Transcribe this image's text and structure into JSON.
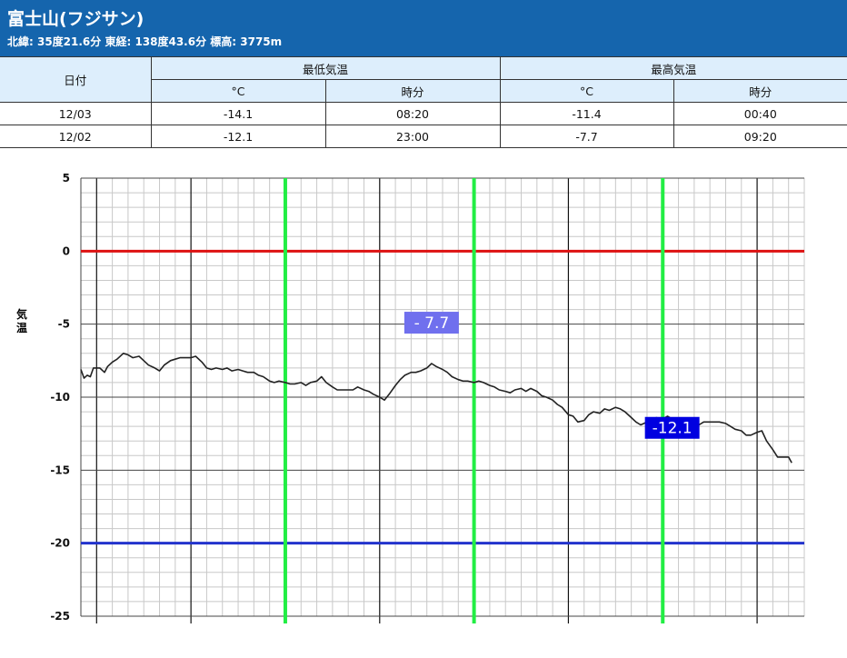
{
  "station": {
    "title": "富士山(フジサン)",
    "info": "北緯: 35度21.6分 東経: 138度43.6分 標高: 3775m"
  },
  "table": {
    "date_header": "日付",
    "min_group": "最低気温",
    "max_group": "最高気温",
    "unit_c": "°C",
    "unit_time": "時分",
    "rows": [
      {
        "date": "12/03",
        "min_c": "-14.1",
        "min_time": "08:20",
        "max_c": "-11.4",
        "max_time": "00:40"
      },
      {
        "date": "12/02",
        "min_c": "-12.1",
        "min_time": "23:00",
        "max_c": "-7.7",
        "max_time": "09:20"
      }
    ]
  },
  "chart_data": {
    "type": "line",
    "ylabel": "気温",
    "ylim": [
      -25,
      5
    ],
    "yticks": [
      "5",
      "0",
      "-5",
      "-10",
      "-15",
      "-20",
      "-25"
    ],
    "ytick_values": [
      5,
      0,
      -5,
      -10,
      -15,
      -20,
      -25
    ],
    "reference_lines": [
      {
        "value": 0,
        "color": "#dd1111"
      },
      {
        "value": -20,
        "color": "#2233cc"
      }
    ],
    "vertical_markers_hours": [
      12,
      24,
      36
    ],
    "x_hours_range": [
      -1,
      45
    ],
    "annotations": [
      {
        "text": "- 7.7",
        "x_hour": 21.3,
        "value": -7.7,
        "bg": "#7070ee"
      },
      {
        "text": "-12.1",
        "x_hour": 36.6,
        "value": -12.1,
        "bg": "#0000e0"
      }
    ],
    "series": [
      {
        "color": "#222222",
        "points": [
          [
            -1,
            -8.1
          ],
          [
            -0.8,
            -8.7
          ],
          [
            -0.6,
            -8.5
          ],
          [
            -0.4,
            -8.6
          ],
          [
            -0.2,
            -8.0
          ],
          [
            0.2,
            -8.0
          ],
          [
            0.5,
            -8.3
          ],
          [
            0.7,
            -7.9
          ],
          [
            1.0,
            -7.6
          ],
          [
            1.3,
            -7.4
          ],
          [
            1.7,
            -7.0
          ],
          [
            2.0,
            -7.1
          ],
          [
            2.3,
            -7.3
          ],
          [
            2.7,
            -7.2
          ],
          [
            3.0,
            -7.5
          ],
          [
            3.3,
            -7.8
          ],
          [
            3.7,
            -8.0
          ],
          [
            4.0,
            -8.2
          ],
          [
            4.3,
            -7.8
          ],
          [
            4.7,
            -7.5
          ],
          [
            5.0,
            -7.4
          ],
          [
            5.3,
            -7.3
          ],
          [
            5.7,
            -7.3
          ],
          [
            6.0,
            -7.3
          ],
          [
            6.3,
            -7.2
          ],
          [
            6.7,
            -7.6
          ],
          [
            7.0,
            -8.0
          ],
          [
            7.3,
            -8.1
          ],
          [
            7.6,
            -8.0
          ],
          [
            8.0,
            -8.1
          ],
          [
            8.3,
            -8.0
          ],
          [
            8.6,
            -8.2
          ],
          [
            9.0,
            -8.1
          ],
          [
            9.3,
            -8.2
          ],
          [
            9.6,
            -8.3
          ],
          [
            10.0,
            -8.3
          ],
          [
            10.3,
            -8.5
          ],
          [
            10.6,
            -8.6
          ],
          [
            11.0,
            -8.9
          ],
          [
            11.3,
            -9.0
          ],
          [
            11.6,
            -8.9
          ],
          [
            12.0,
            -9.0
          ],
          [
            12.3,
            -9.1
          ],
          [
            12.6,
            -9.1
          ],
          [
            13.0,
            -9.0
          ],
          [
            13.3,
            -9.2
          ],
          [
            13.6,
            -9.0
          ],
          [
            14.0,
            -8.9
          ],
          [
            14.3,
            -8.6
          ],
          [
            14.6,
            -9.0
          ],
          [
            15.0,
            -9.3
          ],
          [
            15.3,
            -9.5
          ],
          [
            15.6,
            -9.5
          ],
          [
            16.0,
            -9.5
          ],
          [
            16.3,
            -9.5
          ],
          [
            16.6,
            -9.3
          ],
          [
            17.0,
            -9.5
          ],
          [
            17.3,
            -9.6
          ],
          [
            17.6,
            -9.8
          ],
          [
            18.0,
            -10.0
          ],
          [
            18.3,
            -10.2
          ],
          [
            18.6,
            -9.8
          ],
          [
            19.0,
            -9.2
          ],
          [
            19.3,
            -8.8
          ],
          [
            19.6,
            -8.5
          ],
          [
            20.0,
            -8.3
          ],
          [
            20.3,
            -8.3
          ],
          [
            20.6,
            -8.2
          ],
          [
            21.0,
            -8.0
          ],
          [
            21.3,
            -7.7
          ],
          [
            21.6,
            -7.9
          ],
          [
            22.0,
            -8.1
          ],
          [
            22.3,
            -8.3
          ],
          [
            22.6,
            -8.6
          ],
          [
            23.0,
            -8.8
          ],
          [
            23.3,
            -8.9
          ],
          [
            23.6,
            -8.9
          ],
          [
            24.0,
            -9.0
          ],
          [
            24.3,
            -8.9
          ],
          [
            24.6,
            -9.0
          ],
          [
            25.0,
            -9.2
          ],
          [
            25.3,
            -9.3
          ],
          [
            25.6,
            -9.5
          ],
          [
            26.0,
            -9.6
          ],
          [
            26.3,
            -9.7
          ],
          [
            26.6,
            -9.5
          ],
          [
            27.0,
            -9.4
          ],
          [
            27.3,
            -9.6
          ],
          [
            27.6,
            -9.4
          ],
          [
            28.0,
            -9.6
          ],
          [
            28.3,
            -9.9
          ],
          [
            28.6,
            -10.0
          ],
          [
            29.0,
            -10.2
          ],
          [
            29.3,
            -10.5
          ],
          [
            29.6,
            -10.7
          ],
          [
            30.0,
            -11.2
          ],
          [
            30.3,
            -11.3
          ],
          [
            30.6,
            -11.7
          ],
          [
            31.0,
            -11.6
          ],
          [
            31.3,
            -11.2
          ],
          [
            31.6,
            -11.0
          ],
          [
            32.0,
            -11.1
          ],
          [
            32.3,
            -10.8
          ],
          [
            32.6,
            -10.9
          ],
          [
            33.0,
            -10.7
          ],
          [
            33.3,
            -10.8
          ],
          [
            33.6,
            -11.0
          ],
          [
            34.0,
            -11.4
          ],
          [
            34.3,
            -11.7
          ],
          [
            34.6,
            -11.9
          ],
          [
            35.0,
            -11.7
          ],
          [
            35.3,
            -11.5
          ],
          [
            35.6,
            -11.4
          ],
          [
            36.0,
            -11.5
          ],
          [
            36.3,
            -11.3
          ],
          [
            36.6,
            -11.5
          ],
          [
            37.0,
            -11.7
          ],
          [
            37.3,
            -12.0
          ],
          [
            37.6,
            -12.1
          ],
          [
            38.0,
            -12.0
          ],
          [
            38.3,
            -11.9
          ],
          [
            38.6,
            -11.7
          ],
          [
            39.0,
            -11.7
          ],
          [
            39.3,
            -11.7
          ],
          [
            39.6,
            -11.7
          ],
          [
            40.0,
            -11.8
          ],
          [
            40.3,
            -12.0
          ],
          [
            40.6,
            -12.2
          ],
          [
            41.0,
            -12.3
          ],
          [
            41.3,
            -12.6
          ],
          [
            41.6,
            -12.6
          ],
          [
            42.0,
            -12.4
          ],
          [
            42.3,
            -12.3
          ],
          [
            42.6,
            -13.0
          ],
          [
            43.0,
            -13.6
          ],
          [
            43.3,
            -14.1
          ],
          [
            43.6,
            -14.1
          ],
          [
            44.0,
            -14.1
          ],
          [
            44.2,
            -14.5
          ]
        ]
      }
    ]
  }
}
